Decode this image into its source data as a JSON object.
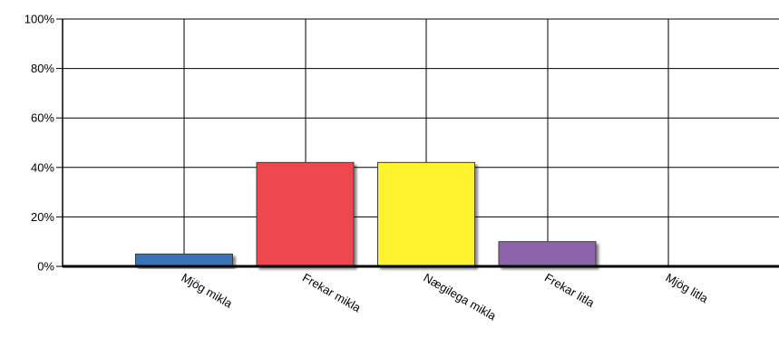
{
  "chart_data": {
    "type": "bar",
    "title": "",
    "xlabel": "",
    "ylabel": "",
    "ylim": [
      0,
      100
    ],
    "y_ticks": [
      {
        "value": 0,
        "label": "0%"
      },
      {
        "value": 20,
        "label": "20%"
      },
      {
        "value": 40,
        "label": "40%"
      },
      {
        "value": 60,
        "label": "60%"
      },
      {
        "value": 80,
        "label": "80%"
      },
      {
        "value": 100,
        "label": "100%"
      }
    ],
    "categories": [
      "Mjög mikla",
      "Frekar mikla",
      "Nægilega mikla",
      "Frekar litla",
      "Mjög litla"
    ],
    "values": [
      5,
      42,
      42,
      10,
      0
    ],
    "colors": [
      "#3b73b9",
      "#ee4650",
      "#fff22f",
      "#8d63aa",
      "#888888"
    ],
    "grid": true,
    "legend": "none"
  }
}
